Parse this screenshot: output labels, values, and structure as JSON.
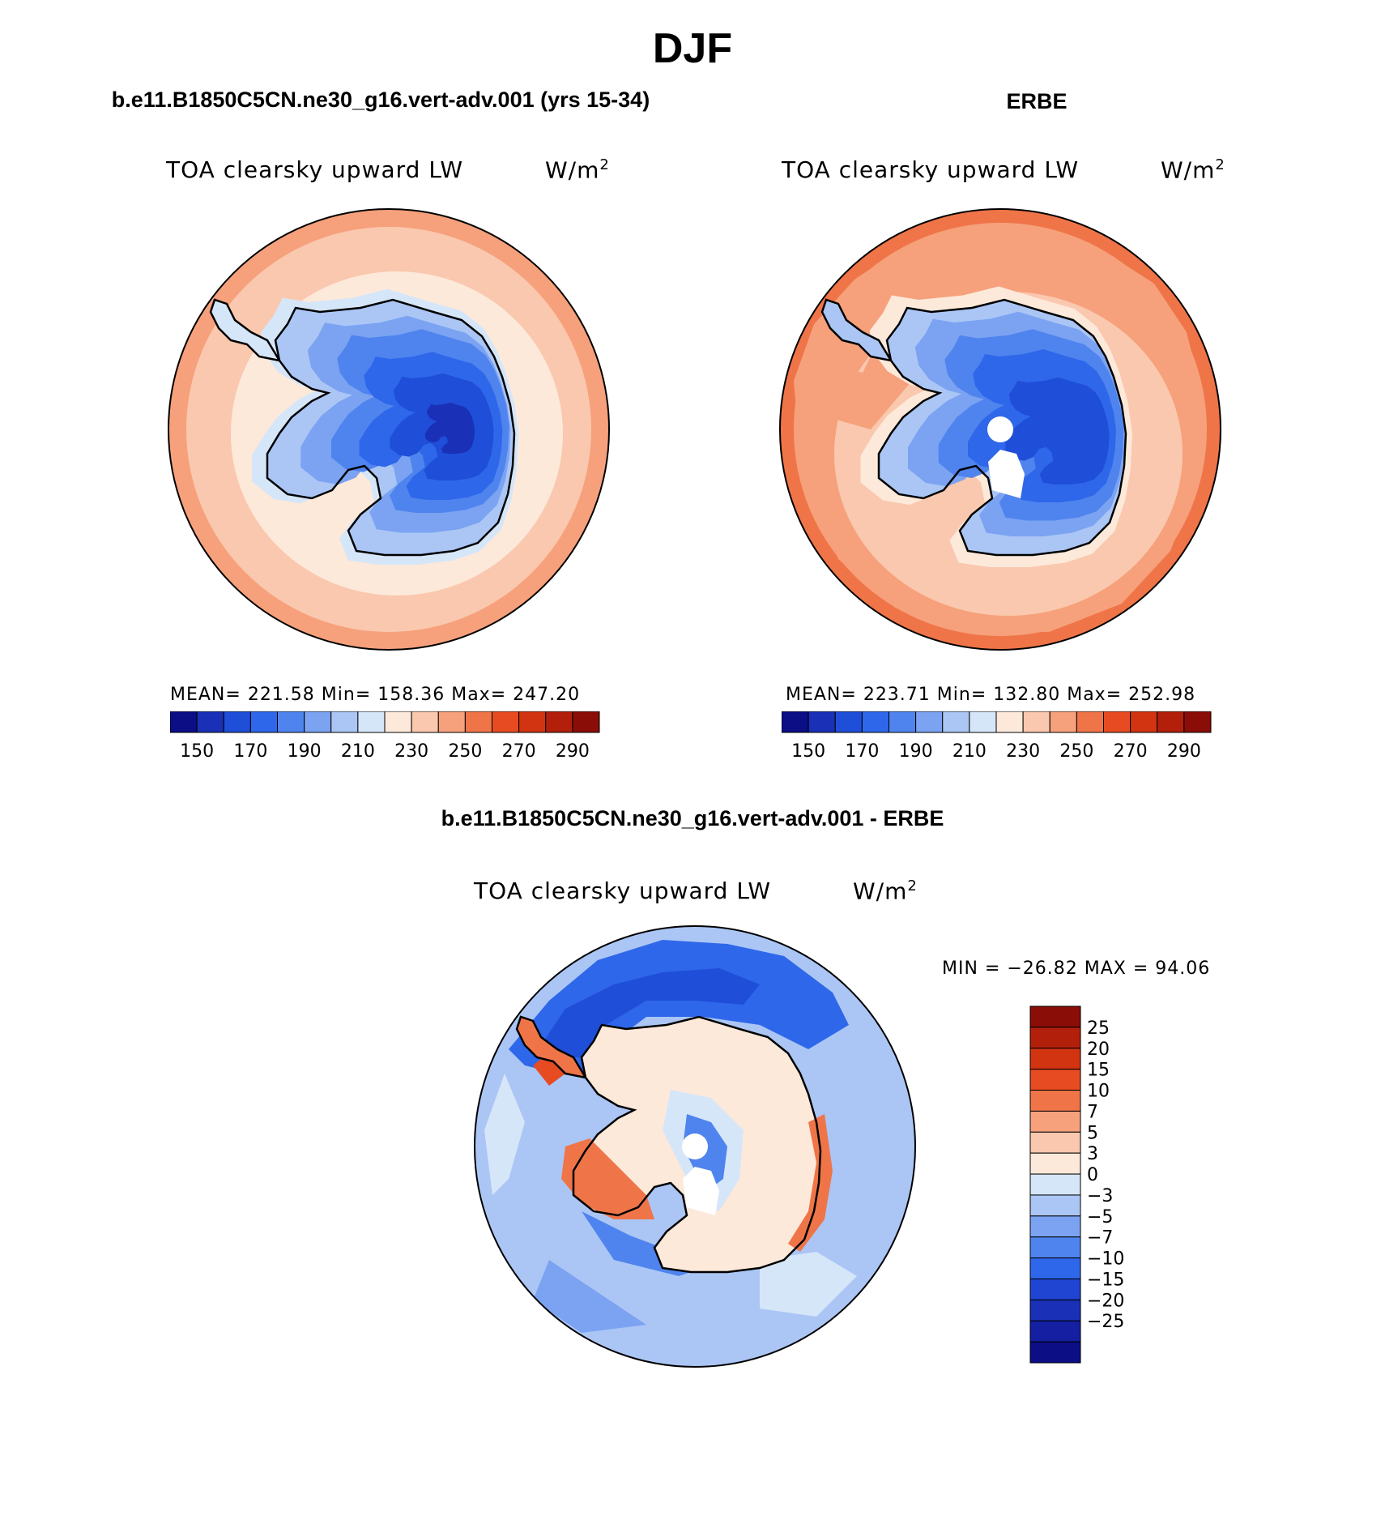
{
  "figure": {
    "title": "DJF",
    "panels": [
      {
        "title": "b.e11.B1850C5CN.ne30_g16.vert-adv.001 (yrs 15-34)",
        "variable": "TOA clearsky upward LW",
        "units": "W/m",
        "units_sup": "2",
        "stats": "MEAN= 221.58   Min= 158.36   Max= 247.20"
      },
      {
        "title": "ERBE",
        "variable": "TOA clearsky upward LW",
        "units": "W/m",
        "units_sup": "2",
        "stats": "MEAN= 223.71   Min= 132.80   Max= 252.98"
      },
      {
        "title": "b.e11.B1850C5CN.ne30_g16.vert-adv.001 - ERBE",
        "variable": "TOA clearsky upward LW",
        "units": "W/m",
        "units_sup": "2",
        "stats": "MIN = −26.82  MAX =   94.06"
      }
    ],
    "colorbar_abs": {
      "colors": [
        "#0b0e85",
        "#1930b7",
        "#1f4ed8",
        "#2e67ea",
        "#4f84ee",
        "#7ba3f2",
        "#abc6f5",
        "#d6e6f9",
        "#fde9da",
        "#fac8ae",
        "#f6a17c",
        "#ef7548",
        "#e64b22",
        "#d23311",
        "#b2200c",
        "#8a0d08"
      ],
      "tick_labels": [
        "150",
        "170",
        "190",
        "210",
        "230",
        "250",
        "270",
        "290"
      ]
    },
    "colorbar_diff": {
      "colors": [
        "#0b0e85",
        "#141fa2",
        "#1930b7",
        "#1f45d2",
        "#2e67ea",
        "#4f84ee",
        "#7ba3f2",
        "#abc6f5",
        "#d6e6f9",
        "#fde9da",
        "#fac8ae",
        "#f6a17c",
        "#ef7548",
        "#e64b22",
        "#d23311",
        "#b2200c",
        "#8a0d08"
      ],
      "tick_labels": [
        "25",
        "20",
        "15",
        "10",
        "7",
        "5",
        "3",
        "0",
        "−3",
        "−5",
        "−7",
        "−10",
        "−15",
        "−20",
        "−25"
      ]
    }
  }
}
